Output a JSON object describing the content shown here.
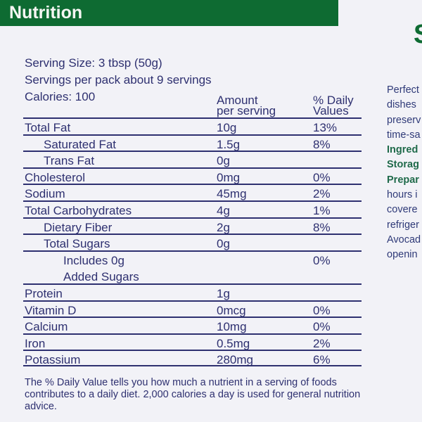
{
  "panel": {
    "title": "Nutrition",
    "serving_size": "Serving Size: 3 tbsp (50g)",
    "servings_per_pack": "Servings per pack about 9 servings",
    "calories": "Calories: 100",
    "col_amount": [
      "Amount",
      "per serving"
    ],
    "col_dv": [
      "% Daily",
      "Values"
    ]
  },
  "rows": [
    {
      "label": "Total Fat",
      "amount": "10g",
      "dv": "13%"
    },
    {
      "label": "Saturated Fat",
      "amount": "1.5g",
      "dv": "8%"
    },
    {
      "label": "Trans Fat",
      "amount": "0g",
      "dv": ""
    },
    {
      "label": "Cholesterol",
      "amount": "0mg",
      "dv": "0%"
    },
    {
      "label": "Sodium",
      "amount": "45mg",
      "dv": "2%"
    },
    {
      "label": "Total Carbohydrates",
      "amount": "4g",
      "dv": "1%"
    },
    {
      "label": "Dietary Fiber",
      "amount": "2g",
      "dv": "8%"
    },
    {
      "label": "Total Sugars",
      "amount": "0g",
      "dv": ""
    },
    {
      "label": [
        "Includes 0g",
        "Added Sugars"
      ],
      "amount": "",
      "dv": "0%"
    },
    {
      "label": "Protein",
      "amount": "1g",
      "dv": ""
    },
    {
      "label": "Vitamin D",
      "amount": "0mcg",
      "dv": "0%"
    },
    {
      "label": "Calcium",
      "amount": "10mg",
      "dv": "0%"
    },
    {
      "label": "Iron",
      "amount": "0.5mg",
      "dv": "2%"
    },
    {
      "label": "Potassium",
      "amount": "280mg",
      "dv": "6%"
    }
  ],
  "footnote": "The % Daily Value tells you how much a nutrient in a serving of foods contributes to a daily diet. 2,000 calories a day is used for general nutrition advice.",
  "side_panel": {
    "heading": "S",
    "lines": [
      {
        "text": "Perfect",
        "bold": false
      },
      {
        "text": "dishes",
        "bold": false
      },
      {
        "text": "preserv",
        "bold": false
      },
      {
        "text": "time-sa",
        "bold": false
      },
      {
        "text": "Ingred",
        "bold": true
      },
      {
        "text": "Storag",
        "bold": true
      },
      {
        "text": "Prepar",
        "bold": true
      },
      {
        "text": "hours i",
        "bold": false
      },
      {
        "text": "covere",
        "bold": false
      },
      {
        "text": "refriger",
        "bold": false
      },
      {
        "text": "Avocad",
        "bold": false
      },
      {
        "text": "openin",
        "bold": false
      }
    ]
  }
}
